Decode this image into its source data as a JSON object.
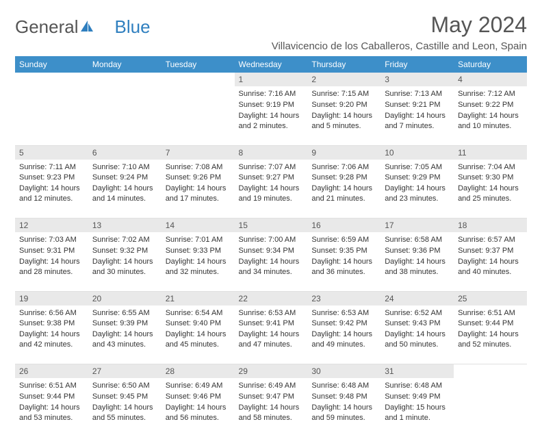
{
  "header": {
    "logo_general": "General",
    "logo_blue": "Blue",
    "title": "May 2024",
    "subtitle": "Villavicencio de los Caballeros, Castille and Leon, Spain"
  },
  "colors": {
    "header_bg": "#3d8fc9",
    "daynum_bg": "#e9e9e9",
    "text": "#333333",
    "title_text": "#555555",
    "logo_blue": "#2f7fbf"
  },
  "day_names": [
    "Sunday",
    "Monday",
    "Tuesday",
    "Wednesday",
    "Thursday",
    "Friday",
    "Saturday"
  ],
  "first_weekday_index": 3,
  "days": [
    {
      "n": "1",
      "sunrise": "7:16 AM",
      "sunset": "9:19 PM",
      "daylight": "14 hours and 2 minutes."
    },
    {
      "n": "2",
      "sunrise": "7:15 AM",
      "sunset": "9:20 PM",
      "daylight": "14 hours and 5 minutes."
    },
    {
      "n": "3",
      "sunrise": "7:13 AM",
      "sunset": "9:21 PM",
      "daylight": "14 hours and 7 minutes."
    },
    {
      "n": "4",
      "sunrise": "7:12 AM",
      "sunset": "9:22 PM",
      "daylight": "14 hours and 10 minutes."
    },
    {
      "n": "5",
      "sunrise": "7:11 AM",
      "sunset": "9:23 PM",
      "daylight": "14 hours and 12 minutes."
    },
    {
      "n": "6",
      "sunrise": "7:10 AM",
      "sunset": "9:24 PM",
      "daylight": "14 hours and 14 minutes."
    },
    {
      "n": "7",
      "sunrise": "7:08 AM",
      "sunset": "9:26 PM",
      "daylight": "14 hours and 17 minutes."
    },
    {
      "n": "8",
      "sunrise": "7:07 AM",
      "sunset": "9:27 PM",
      "daylight": "14 hours and 19 minutes."
    },
    {
      "n": "9",
      "sunrise": "7:06 AM",
      "sunset": "9:28 PM",
      "daylight": "14 hours and 21 minutes."
    },
    {
      "n": "10",
      "sunrise": "7:05 AM",
      "sunset": "9:29 PM",
      "daylight": "14 hours and 23 minutes."
    },
    {
      "n": "11",
      "sunrise": "7:04 AM",
      "sunset": "9:30 PM",
      "daylight": "14 hours and 25 minutes."
    },
    {
      "n": "12",
      "sunrise": "7:03 AM",
      "sunset": "9:31 PM",
      "daylight": "14 hours and 28 minutes."
    },
    {
      "n": "13",
      "sunrise": "7:02 AM",
      "sunset": "9:32 PM",
      "daylight": "14 hours and 30 minutes."
    },
    {
      "n": "14",
      "sunrise": "7:01 AM",
      "sunset": "9:33 PM",
      "daylight": "14 hours and 32 minutes."
    },
    {
      "n": "15",
      "sunrise": "7:00 AM",
      "sunset": "9:34 PM",
      "daylight": "14 hours and 34 minutes."
    },
    {
      "n": "16",
      "sunrise": "6:59 AM",
      "sunset": "9:35 PM",
      "daylight": "14 hours and 36 minutes."
    },
    {
      "n": "17",
      "sunrise": "6:58 AM",
      "sunset": "9:36 PM",
      "daylight": "14 hours and 38 minutes."
    },
    {
      "n": "18",
      "sunrise": "6:57 AM",
      "sunset": "9:37 PM",
      "daylight": "14 hours and 40 minutes."
    },
    {
      "n": "19",
      "sunrise": "6:56 AM",
      "sunset": "9:38 PM",
      "daylight": "14 hours and 42 minutes."
    },
    {
      "n": "20",
      "sunrise": "6:55 AM",
      "sunset": "9:39 PM",
      "daylight": "14 hours and 43 minutes."
    },
    {
      "n": "21",
      "sunrise": "6:54 AM",
      "sunset": "9:40 PM",
      "daylight": "14 hours and 45 minutes."
    },
    {
      "n": "22",
      "sunrise": "6:53 AM",
      "sunset": "9:41 PM",
      "daylight": "14 hours and 47 minutes."
    },
    {
      "n": "23",
      "sunrise": "6:53 AM",
      "sunset": "9:42 PM",
      "daylight": "14 hours and 49 minutes."
    },
    {
      "n": "24",
      "sunrise": "6:52 AM",
      "sunset": "9:43 PM",
      "daylight": "14 hours and 50 minutes."
    },
    {
      "n": "25",
      "sunrise": "6:51 AM",
      "sunset": "9:44 PM",
      "daylight": "14 hours and 52 minutes."
    },
    {
      "n": "26",
      "sunrise": "6:51 AM",
      "sunset": "9:44 PM",
      "daylight": "14 hours and 53 minutes."
    },
    {
      "n": "27",
      "sunrise": "6:50 AM",
      "sunset": "9:45 PM",
      "daylight": "14 hours and 55 minutes."
    },
    {
      "n": "28",
      "sunrise": "6:49 AM",
      "sunset": "9:46 PM",
      "daylight": "14 hours and 56 minutes."
    },
    {
      "n": "29",
      "sunrise": "6:49 AM",
      "sunset": "9:47 PM",
      "daylight": "14 hours and 58 minutes."
    },
    {
      "n": "30",
      "sunrise": "6:48 AM",
      "sunset": "9:48 PM",
      "daylight": "14 hours and 59 minutes."
    },
    {
      "n": "31",
      "sunrise": "6:48 AM",
      "sunset": "9:49 PM",
      "daylight": "15 hours and 1 minute."
    }
  ],
  "labels": {
    "sunrise": "Sunrise:",
    "sunset": "Sunset:",
    "daylight": "Daylight:"
  }
}
